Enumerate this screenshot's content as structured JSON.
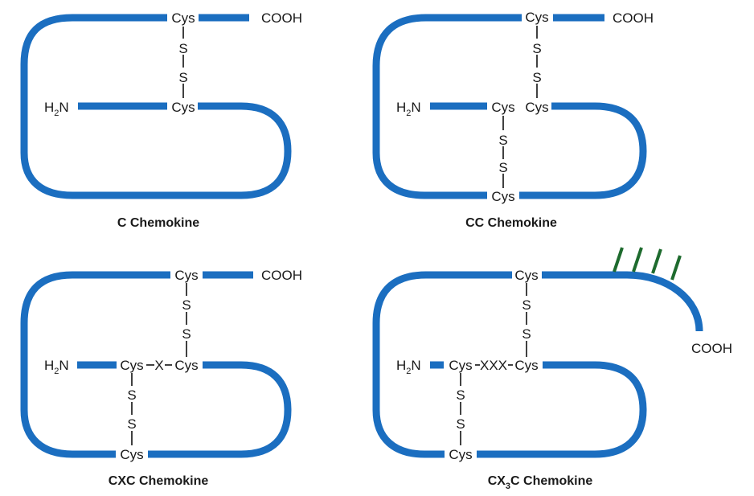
{
  "panels": [
    {
      "caption": "C Chemokine",
      "cys_top": "Cys",
      "cooh": "COOH",
      "h2n": "H",
      "h2n_sub": "2",
      "h2n_n": "N",
      "cys_mid": "Cys",
      "s_labels": [
        "S",
        "S"
      ]
    },
    {
      "caption": "CC Chemokine",
      "cys_top": "Cys",
      "cooh": "COOH",
      "h2n": "H",
      "h2n_sub": "2",
      "h2n_n": "N",
      "cys_mid_left": "Cys",
      "cys_mid_right": "Cys",
      "cys_bottom": "Cys",
      "s_labels_top": [
        "S",
        "S"
      ],
      "s_labels_bottom": [
        "S",
        "S"
      ]
    },
    {
      "caption": "CXC Chemokine",
      "cys_top": "Cys",
      "cooh": "COOH",
      "h2n": "H",
      "h2n_sub": "2",
      "h2n_n": "N",
      "cys_mid_left": "Cys",
      "x_label": "X",
      "cys_mid_right": "Cys",
      "cys_bottom": "Cys",
      "s_labels_top": [
        "S",
        "S"
      ],
      "s_labels_bottom": [
        "S",
        "S"
      ]
    },
    {
      "caption_pre": "CX",
      "caption_sub": "3",
      "caption_post": "C Chemokine",
      "cys_top": "Cys",
      "cooh": "COOH",
      "h2n": "H",
      "h2n_sub": "2",
      "h2n_n": "N",
      "cys_mid_left": "Cys",
      "xxx_label": "XXX",
      "cys_mid_right": "Cys",
      "cys_bottom": "Cys",
      "s_labels_top": [
        "S",
        "S"
      ],
      "s_labels_bottom": [
        "S",
        "S"
      ]
    }
  ],
  "colors": {
    "chain": "#1b6ec0",
    "glycosylation": "#1e6b2e",
    "bond": "#111111"
  }
}
